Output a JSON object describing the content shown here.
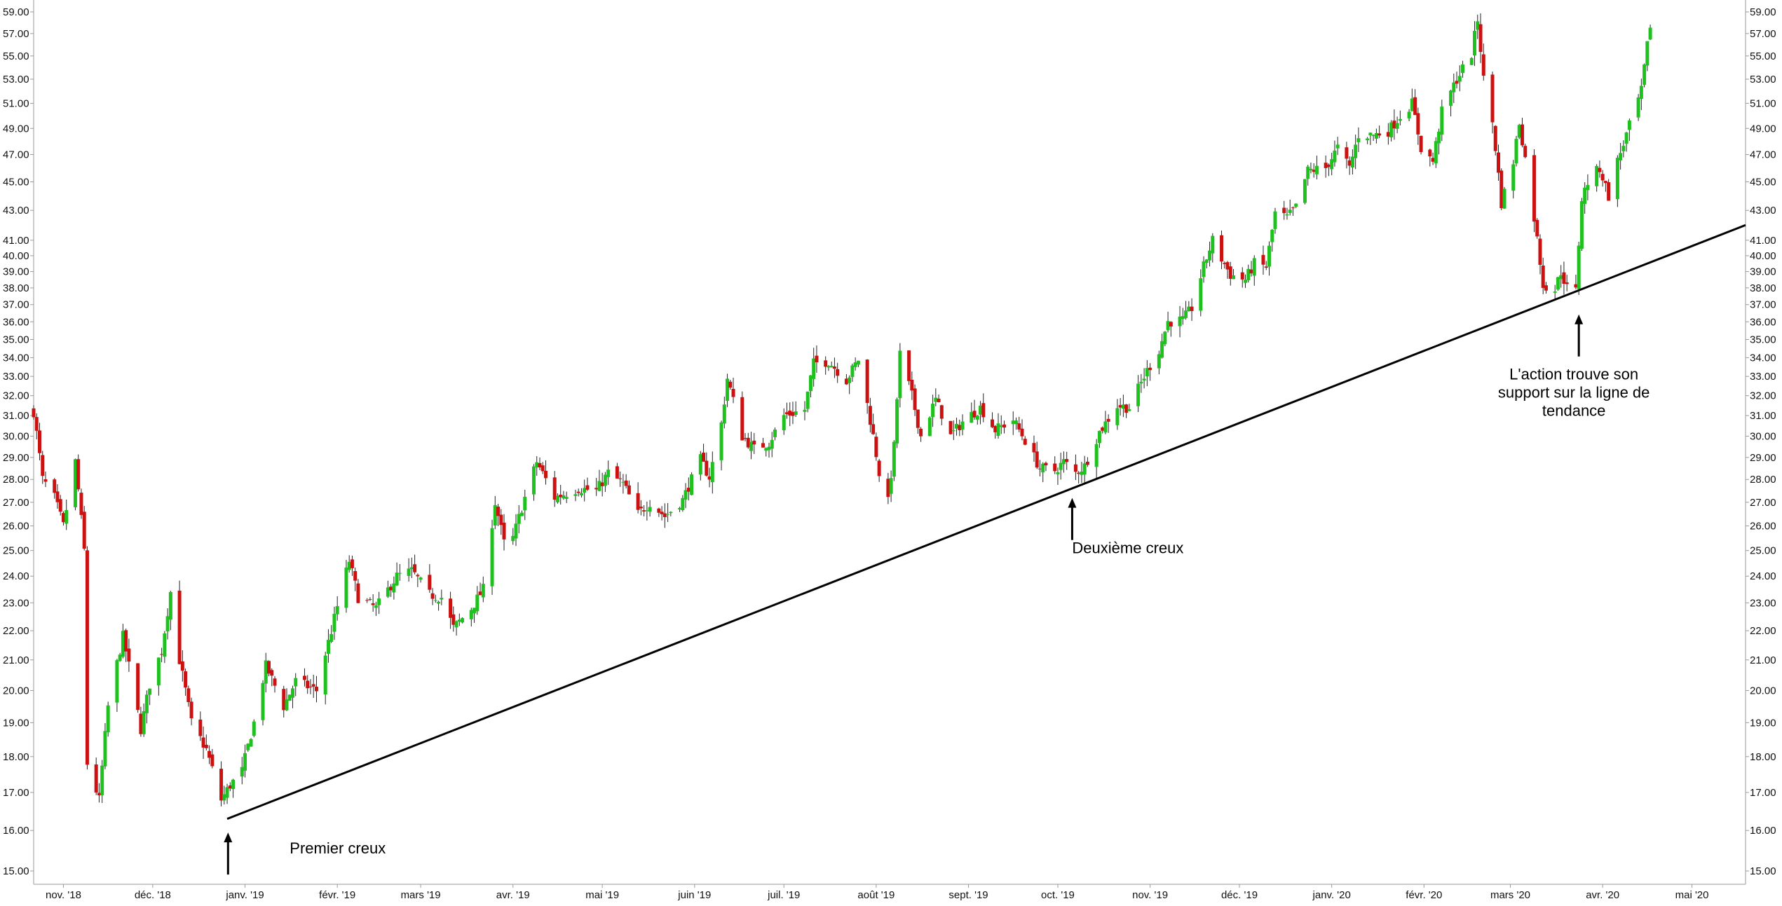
{
  "chart_data": {
    "type": "candlestick",
    "scale": "log",
    "ylim": [
      14.8,
      60.0
    ],
    "y_ticks": [
      "15.00",
      "16.00",
      "17.00",
      "18.00",
      "19.00",
      "20.00",
      "21.00",
      "22.00",
      "23.00",
      "24.00",
      "25.00",
      "26.00",
      "27.00",
      "28.00",
      "29.00",
      "30.00",
      "31.00",
      "32.00",
      "33.00",
      "34.00",
      "35.00",
      "36.00",
      "37.00",
      "38.00",
      "39.00",
      "40.00",
      "41.00",
      "43.00",
      "45.00",
      "47.00",
      "49.00",
      "51.00",
      "53.00",
      "55.00",
      "57.00",
      "59.00"
    ],
    "x_start": "2018-10-22",
    "x_end": "2020-05-19",
    "x_ticks": [
      {
        "date": "2018-11-01",
        "label": "nov. '18"
      },
      {
        "date": "2018-12-01",
        "label": "déc. '18"
      },
      {
        "date": "2019-01-01",
        "label": "janv. '19"
      },
      {
        "date": "2019-02-01",
        "label": "févr. '19"
      },
      {
        "date": "2019-03-01",
        "label": "mars '19"
      },
      {
        "date": "2019-04-01",
        "label": "avr. '19"
      },
      {
        "date": "2019-05-01",
        "label": "mai '19"
      },
      {
        "date": "2019-06-01",
        "label": "juin '19"
      },
      {
        "date": "2019-07-01",
        "label": "juil. '19"
      },
      {
        "date": "2019-08-01",
        "label": "août '19"
      },
      {
        "date": "2019-09-01",
        "label": "sept. '19"
      },
      {
        "date": "2019-10-01",
        "label": "oct. '19"
      },
      {
        "date": "2019-11-01",
        "label": "nov. '19"
      },
      {
        "date": "2019-12-01",
        "label": "déc. '19"
      },
      {
        "date": "2020-01-01",
        "label": "janv. '20"
      },
      {
        "date": "2020-02-01",
        "label": "févr. '20"
      },
      {
        "date": "2020-03-01",
        "label": "mars '20"
      },
      {
        "date": "2020-04-01",
        "label": "avr. '20"
      },
      {
        "date": "2020-05-01",
        "label": "mai '20"
      }
    ],
    "close_anchors": [
      [
        "2018-10-22",
        31.2
      ],
      [
        "2018-10-25",
        28.0
      ],
      [
        "2018-10-29",
        27.2
      ],
      [
        "2018-11-01",
        26.0
      ],
      [
        "2018-11-05",
        28.8
      ],
      [
        "2018-11-08",
        25.0
      ],
      [
        "2018-11-09",
        17.8
      ],
      [
        "2018-11-13",
        16.8
      ],
      [
        "2018-11-16",
        19.5
      ],
      [
        "2018-11-21",
        21.8
      ],
      [
        "2018-11-27",
        18.8
      ],
      [
        "2018-11-30",
        20.2
      ],
      [
        "2018-12-04",
        21.3
      ],
      [
        "2018-12-07",
        23.4
      ],
      [
        "2018-12-10",
        21.0
      ],
      [
        "2018-12-14",
        19.0
      ],
      [
        "2018-12-19",
        18.2
      ],
      [
        "2018-12-24",
        16.8
      ],
      [
        "2018-12-27",
        17.2
      ],
      [
        "2018-12-31",
        17.6
      ],
      [
        "2019-01-04",
        19.0
      ],
      [
        "2019-01-08",
        20.8
      ],
      [
        "2019-01-14",
        19.5
      ],
      [
        "2019-01-18",
        20.3
      ],
      [
        "2019-01-25",
        20.0
      ],
      [
        "2019-01-30",
        22.0
      ],
      [
        "2019-02-05",
        24.6
      ],
      [
        "2019-02-08",
        23.2
      ],
      [
        "2019-02-14",
        22.8
      ],
      [
        "2019-02-21",
        24.0
      ],
      [
        "2019-02-26",
        24.2
      ],
      [
        "2019-03-04",
        23.3
      ],
      [
        "2019-03-08",
        23.2
      ],
      [
        "2019-03-12",
        22.1
      ],
      [
        "2019-03-18",
        22.8
      ],
      [
        "2019-03-22",
        23.5
      ],
      [
        "2019-03-26",
        27.0
      ],
      [
        "2019-03-29",
        25.3
      ],
      [
        "2019-04-01",
        25.5
      ],
      [
        "2019-04-05",
        27.2
      ],
      [
        "2019-04-09",
        28.8
      ],
      [
        "2019-04-15",
        27.2
      ],
      [
        "2019-04-23",
        27.6
      ],
      [
        "2019-04-29",
        27.5
      ],
      [
        "2019-05-03",
        28.3
      ],
      [
        "2019-05-08",
        27.8
      ],
      [
        "2019-05-13",
        26.5
      ],
      [
        "2019-05-17",
        27.0
      ],
      [
        "2019-05-22",
        26.4
      ],
      [
        "2019-05-28",
        27.1
      ],
      [
        "2019-06-03",
        28.9
      ],
      [
        "2019-06-06",
        28.1
      ],
      [
        "2019-06-10",
        30.6
      ],
      [
        "2019-06-12",
        32.9
      ],
      [
        "2019-06-17",
        30.0
      ],
      [
        "2019-06-21",
        29.4
      ],
      [
        "2019-06-26",
        29.7
      ],
      [
        "2019-07-01",
        31.0
      ],
      [
        "2019-07-08",
        31.3
      ],
      [
        "2019-07-11",
        33.7
      ],
      [
        "2019-07-16",
        33.8
      ],
      [
        "2019-07-22",
        32.8
      ],
      [
        "2019-07-26",
        33.9
      ],
      [
        "2019-07-31",
        30.0
      ],
      [
        "2019-08-02",
        28.3
      ],
      [
        "2019-08-05",
        27.0
      ],
      [
        "2019-08-07",
        29.5
      ],
      [
        "2019-08-09",
        34.2
      ],
      [
        "2019-08-13",
        32.0
      ],
      [
        "2019-08-16",
        30.0
      ],
      [
        "2019-08-21",
        31.8
      ],
      [
        "2019-08-26",
        30.0
      ],
      [
        "2019-08-30",
        30.7
      ],
      [
        "2019-09-05",
        31.4
      ],
      [
        "2019-09-10",
        30.3
      ],
      [
        "2019-09-16",
        30.8
      ],
      [
        "2019-09-20",
        29.8
      ],
      [
        "2019-09-25",
        28.5
      ],
      [
        "2019-09-30",
        28.4
      ],
      [
        "2019-10-03",
        28.8
      ],
      [
        "2019-10-07",
        28.3
      ],
      [
        "2019-10-10",
        28.6
      ],
      [
        "2019-10-15",
        30.2
      ],
      [
        "2019-10-21",
        31.5
      ],
      [
        "2019-10-25",
        31.4
      ],
      [
        "2019-10-31",
        33.3
      ],
      [
        "2019-11-04",
        34.4
      ],
      [
        "2019-11-07",
        36.0
      ],
      [
        "2019-11-12",
        36.1
      ],
      [
        "2019-11-15",
        36.8
      ],
      [
        "2019-11-19",
        39.3
      ],
      [
        "2019-11-22",
        41.0
      ],
      [
        "2019-11-25",
        39.8
      ],
      [
        "2019-11-28",
        38.8
      ],
      [
        "2019-12-03",
        38.5
      ],
      [
        "2019-12-06",
        39.5
      ],
      [
        "2019-12-10",
        39.3
      ],
      [
        "2019-12-13",
        42.8
      ],
      [
        "2019-12-17",
        42.5
      ],
      [
        "2019-12-20",
        43.2
      ],
      [
        "2019-12-24",
        45.8
      ],
      [
        "2019-12-30",
        46.0
      ],
      [
        "2020-01-03",
        47.5
      ],
      [
        "2020-01-07",
        46.0
      ],
      [
        "2020-01-10",
        48.5
      ],
      [
        "2020-01-15",
        48.5
      ],
      [
        "2020-01-20",
        48.8
      ],
      [
        "2020-01-24",
        50.0
      ],
      [
        "2020-01-28",
        51.0
      ],
      [
        "2020-01-31",
        47.5
      ],
      [
        "2020-02-04",
        46.5
      ],
      [
        "2020-02-07",
        50.3
      ],
      [
        "2020-02-12",
        53.0
      ],
      [
        "2020-02-17",
        55.2
      ],
      [
        "2020-02-19",
        58.3
      ],
      [
        "2020-02-21",
        53.0
      ],
      [
        "2020-02-24",
        49.5
      ],
      [
        "2020-02-27",
        43.5
      ],
      [
        "2020-03-02",
        46.5
      ],
      [
        "2020-03-04",
        49.5
      ],
      [
        "2020-03-09",
        42.5
      ],
      [
        "2020-03-12",
        38.2
      ],
      [
        "2020-03-16",
        37.9
      ],
      [
        "2020-03-18",
        39.0
      ],
      [
        "2020-03-20",
        38.0
      ],
      [
        "2020-03-23",
        37.8
      ],
      [
        "2020-03-25",
        43.8
      ],
      [
        "2020-03-27",
        45.0
      ],
      [
        "2020-03-31",
        46.0
      ],
      [
        "2020-04-03",
        44.0
      ],
      [
        "2020-04-06",
        46.5
      ],
      [
        "2020-04-09",
        48.5
      ],
      [
        "2020-04-14",
        52.0
      ],
      [
        "2020-04-17",
        57.8
      ]
    ],
    "trendline": {
      "start": [
        "2018-12-26",
        16.3
      ],
      "end": [
        "2020-05-19",
        42.0
      ]
    },
    "annotations": [
      {
        "text": "Premier creux",
        "date": "2018-12-27",
        "price": 16.2
      },
      {
        "text": "Deuxième creux",
        "date": "2019-10-07",
        "price": 27.8
      },
      {
        "text": "L'action trouve son",
        "text2": "support sur la ligne de",
        "text3": "tendance",
        "date": "2020-03-24",
        "price": 37.0
      }
    ],
    "colors": {
      "up": "#1ec11e",
      "down": "#cc1111",
      "wick": "#222222",
      "axis": "#9a9a9a",
      "trend": "#000000",
      "text": "#111111"
    }
  }
}
